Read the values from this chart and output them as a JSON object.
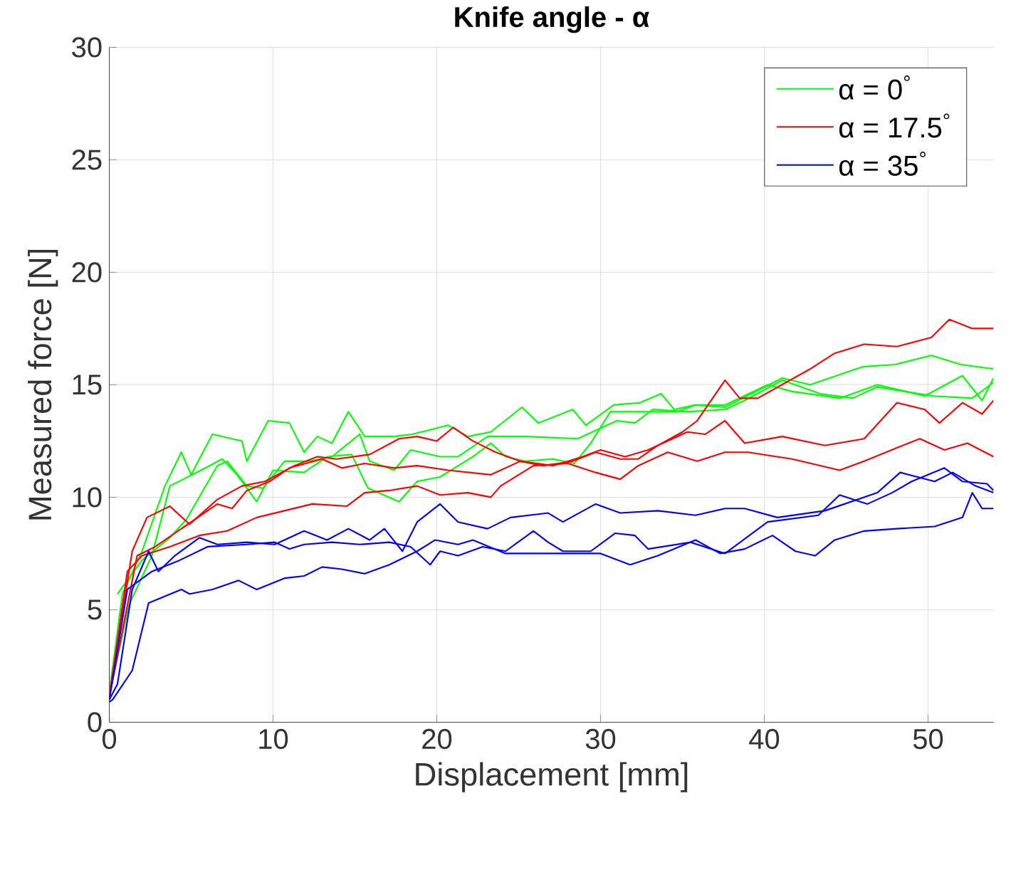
{
  "chart_data": {
    "type": "line",
    "title": "Knife angle - α",
    "xlabel": "Displacement [mm]",
    "ylabel": "Measured force [N]",
    "xlim": [
      0,
      54
    ],
    "xticks": [
      0,
      10,
      20,
      30,
      40,
      50
    ],
    "ylim": [
      0,
      30
    ],
    "yticks": [
      0,
      5,
      10,
      15,
      20,
      25,
      30
    ],
    "grid": true,
    "legend": "top right",
    "series": [
      {
        "name": "α = 0$^{°}$",
        "color": "#00ff00",
        "x": [
          0,
          0.8,
          2,
          3.4,
          4.4,
          5,
          6.3,
          8.1,
          8.4,
          9.7,
          11,
          11.9,
          12.7,
          13.6,
          14.6,
          15.6,
          17.4,
          18.5,
          20.7,
          21.9,
          23.3,
          25.2,
          26.2,
          28.3,
          29.1,
          30.8,
          32.4,
          33.7,
          34.5,
          35.8,
          37.6,
          41.1,
          42.8,
          46,
          48,
          50.2,
          52,
          54
        ],
        "values": [
          1.3,
          5.7,
          7.6,
          10.5,
          12,
          11,
          12.8,
          12.5,
          11.6,
          13.4,
          13.3,
          12,
          12.7,
          12.4,
          13.8,
          12.7,
          12.7,
          12.8,
          13.2,
          12.7,
          12.9,
          14,
          13.3,
          13.9,
          13.2,
          14.1,
          14.2,
          14.6,
          13.9,
          14.1,
          14,
          15.3,
          15,
          15.8,
          15.9,
          16.3,
          15.9,
          15.7
        ]
      },
      {
        "color": "#00ff00",
        "x": [
          0,
          1.2,
          2.6,
          3.7,
          5.6,
          6.9,
          7.8,
          9,
          10,
          11.9,
          13.3,
          14.8,
          15.8,
          17.7,
          18.8,
          20.2,
          22.2,
          23.3,
          24.2,
          25.4,
          27.1,
          28.4,
          29.4,
          30.6,
          32.1,
          34.7,
          35.8,
          37.6,
          40.2,
          41.7,
          44.6,
          46.9,
          49.8,
          52.1,
          53.3,
          54
        ],
        "values": [
          1.2,
          5.2,
          7.4,
          10.5,
          11.2,
          11.7,
          11,
          9.8,
          11.2,
          11.1,
          11.8,
          11.9,
          10.4,
          9.8,
          10.7,
          10.9,
          11.8,
          12.4,
          11.8,
          11.6,
          11.7,
          11.5,
          12.4,
          13.8,
          13.8,
          13.8,
          14.1,
          14.1,
          15,
          14.7,
          14.4,
          15,
          14.5,
          15.4,
          14.3,
          15.3
        ]
      },
      {
        "color": "#00ff00",
        "x": [
          0.5,
          2,
          3.7,
          4.7,
          6.6,
          7.2,
          8.4,
          9.4,
          10.7,
          12.2,
          13.6,
          15.3,
          15.9,
          17.4,
          18.4,
          20.2,
          21.3,
          23.1,
          25.4,
          28.6,
          31,
          32.1,
          33.2,
          35.3,
          37.6,
          38.8,
          41.1,
          43.4,
          45.4,
          46.9,
          48.6,
          50.3,
          52.7,
          54
        ],
        "values": [
          5.7,
          7.2,
          8.2,
          9,
          11.4,
          11.6,
          10.5,
          10.4,
          11.6,
          11.6,
          11.8,
          12.8,
          11.6,
          11.2,
          12.1,
          11.8,
          11.8,
          12.7,
          12.7,
          12.6,
          13.4,
          13.3,
          13.9,
          13.8,
          13.9,
          14.3,
          15.2,
          14.6,
          14.4,
          14.9,
          14.7,
          14.5,
          14.4,
          15.1
        ]
      },
      {
        "name": "α = 17.5$^{°}$",
        "color": "#ff0000",
        "x": [
          0,
          1.4,
          2.3,
          3.7,
          4.9,
          6.6,
          8.1,
          9.5,
          11.3,
          12.7,
          13.9,
          15.9,
          17.7,
          18.8,
          20,
          21,
          22.2,
          23.6,
          25.1,
          26.5,
          28.3,
          29.7,
          31.2,
          32.3,
          33.5,
          35,
          35.9,
          37.6,
          38.5,
          39.6,
          42.8,
          44.3,
          46.1,
          48.1,
          50.2,
          51.3,
          52.7,
          54
        ],
        "values": [
          1.2,
          7.6,
          9.1,
          9.6,
          8.8,
          9.9,
          10.5,
          10.7,
          11.4,
          11.8,
          11.7,
          11.9,
          12.6,
          12.7,
          12.5,
          13.1,
          12.5,
          12,
          11.6,
          11.4,
          11.6,
          12,
          11.7,
          11.7,
          12.3,
          12.9,
          13.4,
          15.2,
          14.4,
          14.4,
          15.7,
          16.4,
          16.8,
          16.7,
          17.1,
          17.9,
          17.5,
          17.5
        ]
      },
      {
        "color": "#ff0000",
        "x": [
          0,
          1.7,
          2.8,
          4.6,
          6.6,
          7.5,
          8.4,
          9.8,
          11,
          13,
          14.2,
          15.6,
          17.4,
          18.8,
          20.7,
          23.3,
          25.1,
          27.1,
          28.9,
          30,
          31.5,
          32.9,
          35.3,
          36.4,
          37.6,
          38.8,
          41.1,
          43.7,
          46.1,
          48.1,
          49.8,
          50.7,
          52.1,
          53.3,
          54
        ],
        "values": [
          1.1,
          7.4,
          7.8,
          8.7,
          9.7,
          9.5,
          10.3,
          10.7,
          11.3,
          11.7,
          11.3,
          11.5,
          11.3,
          11.4,
          11.2,
          11,
          11.6,
          11.4,
          11.8,
          12.1,
          11.8,
          12.1,
          12.9,
          12.8,
          13.4,
          12.4,
          12.7,
          12.3,
          12.6,
          14.2,
          13.9,
          13.3,
          14.2,
          13.7,
          14.3
        ]
      },
      {
        "color": "#ff0000",
        "x": [
          0,
          1.1,
          2,
          3.7,
          5.5,
          7.2,
          9,
          10.7,
          12.4,
          14.5,
          15.6,
          17.1,
          18.8,
          20.2,
          21.9,
          23.3,
          23.9,
          25.9,
          28,
          29.7,
          31.2,
          32.3,
          34.1,
          35.9,
          37.6,
          39,
          41.7,
          44.6,
          46.1,
          48.1,
          49.5,
          51,
          52.4,
          54
        ],
        "values": [
          1.1,
          6.7,
          7.4,
          7.8,
          8.3,
          8.5,
          9.1,
          9.4,
          9.7,
          9.6,
          10.2,
          10.3,
          10.5,
          10.1,
          10.2,
          10,
          10.5,
          11.4,
          11.5,
          11.1,
          10.8,
          11.4,
          12,
          11.6,
          12,
          12,
          11.7,
          11.2,
          11.6,
          12.2,
          12.6,
          12.1,
          12.4,
          11.8
        ]
      },
      {
        "name": "α = 35$^{°}$",
        "color": "#0000ff",
        "x": [
          0,
          0.5,
          1.4,
          2.4,
          3,
          4,
          5.5,
          6.6,
          8.4,
          10.1,
          11.9,
          13.3,
          14.6,
          15.9,
          16.8,
          17.9,
          18.8,
          20.2,
          21.3,
          23.1,
          24.5,
          26.8,
          27.7,
          29.7,
          31.2,
          33.5,
          35.8,
          37.6,
          38.8,
          40.8,
          43.7,
          46.9,
          48.3,
          50.4,
          51.5,
          52.9,
          54
        ],
        "values": [
          1,
          1.7,
          5.9,
          7.6,
          6.7,
          7.4,
          8.2,
          7.9,
          8,
          7.9,
          8.5,
          8.1,
          8.6,
          8.1,
          8.6,
          7.6,
          8.9,
          9.7,
          8.9,
          8.6,
          9.1,
          9.3,
          8.9,
          9.7,
          9.3,
          9.4,
          9.2,
          9.5,
          9.5,
          9.1,
          9.4,
          10.2,
          11.1,
          10.7,
          11.1,
          10.5,
          10.2
        ]
      },
      {
        "color": "#0000ff",
        "x": [
          0,
          1.1,
          2.6,
          4.3,
          6,
          8.4,
          10.1,
          11,
          11.9,
          13.6,
          15.3,
          17.1,
          18.4,
          19.6,
          20.2,
          21.3,
          22.8,
          24.2,
          25.9,
          26.8,
          27.7,
          29.4,
          30.9,
          32.1,
          32.9,
          35.5,
          37.6,
          40.2,
          43.3,
          44.6,
          46.3,
          47.8,
          49,
          51,
          52.1,
          53.6,
          54
        ],
        "values": [
          1,
          5.9,
          6.7,
          7.2,
          7.8,
          7.9,
          8,
          7.7,
          7.9,
          8,
          7.9,
          8,
          7.8,
          7,
          7.6,
          7.4,
          7.8,
          7.6,
          8.5,
          8,
          7.6,
          7.6,
          8.4,
          8.3,
          7.7,
          8,
          7.5,
          8.9,
          9.2,
          10.1,
          9.7,
          10.2,
          10.7,
          11.3,
          10.7,
          10.6,
          10.3
        ]
      },
      {
        "color": "#0000ff",
        "x": [
          0,
          0.2,
          1.4,
          2.4,
          3.4,
          4.4,
          4.9,
          6.3,
          7.9,
          9,
          10.7,
          11.9,
          13,
          14.2,
          15.6,
          17.1,
          18.8,
          19.9,
          21.3,
          22.2,
          24.2,
          25.9,
          28,
          30,
          31.8,
          33.5,
          35.8,
          37.3,
          38.8,
          40.5,
          41.9,
          43.1,
          44.3,
          46.1,
          48.1,
          50.4,
          52.1,
          52.7,
          53.3,
          54
        ],
        "values": [
          0.9,
          1,
          2.3,
          5.3,
          5.6,
          5.9,
          5.7,
          5.9,
          6.3,
          5.9,
          6.4,
          6.5,
          6.9,
          6.8,
          6.6,
          7,
          7.6,
          8.1,
          7.9,
          8.1,
          7.5,
          7.5,
          7.5,
          7.5,
          7,
          7.4,
          8.1,
          7.5,
          7.7,
          8.3,
          7.6,
          7.4,
          8.1,
          8.5,
          8.6,
          8.7,
          9.1,
          10.2,
          9.5,
          9.5
        ]
      }
    ]
  }
}
